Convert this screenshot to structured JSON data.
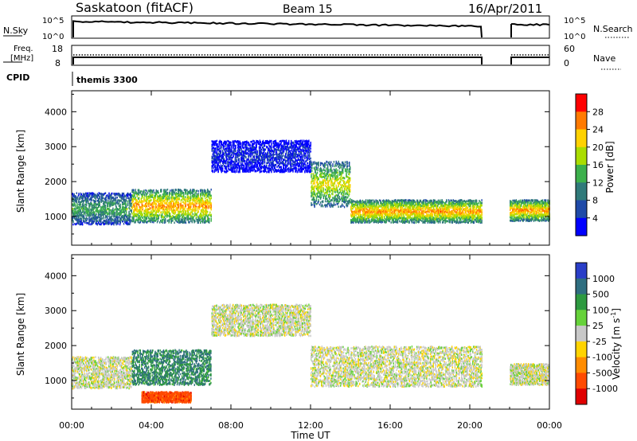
{
  "header": {
    "station": "Saskatoon (fitACF)",
    "beam": "Beam 15",
    "date": "16/Apr/2011"
  },
  "top_panels": {
    "nsky_label": "N.Sky",
    "nsky_ticks": [
      "10^5",
      "10^0"
    ],
    "nsearch_label": "N.Search",
    "nsearch_ticks": [
      "10^5",
      "10^0"
    ],
    "freq_label": "Freq.",
    "freq_unit": "[MHz]",
    "freq_ticks": [
      "18",
      "8"
    ],
    "nave_label": "Nave",
    "nave_ticks": [
      "60",
      "0"
    ],
    "cpid_label": "CPID",
    "cpid_value": "themis 3300"
  },
  "axes": {
    "ylabel": "Slant Range [km]",
    "xlabel": "Time UT",
    "yticks": [
      "4000",
      "3000",
      "2000",
      "1000"
    ],
    "xticks": [
      "00:00",
      "04:00",
      "08:00",
      "12:00",
      "16:00",
      "20:00",
      "00:00"
    ]
  },
  "colorbars": {
    "power": {
      "label": "Power [dB]",
      "ticks": [
        "28",
        "24",
        "20",
        "16",
        "12",
        "8",
        "4"
      ],
      "colors": [
        "#ff0000",
        "#ff7a00",
        "#ffd200",
        "#aadd00",
        "#3cb04c",
        "#307a7a",
        "#1f4aa8",
        "#0000ff"
      ]
    },
    "velocity": {
      "label": "Velocity [m s",
      "label_sup": "-1",
      "label_end": "]",
      "ticks": [
        "1000",
        "500",
        "100",
        "25",
        "-25",
        "-100",
        "-500",
        "-1000"
      ],
      "colors": [
        "#2a3ec8",
        "#2f6e80",
        "#2e9a40",
        "#66d23a",
        "#c8c8c8",
        "#ffd400",
        "#ff8c00",
        "#ff4a00",
        "#e00000"
      ]
    }
  },
  "chart_data": [
    {
      "type": "heatmap",
      "title": "Power",
      "xlabel": "Time UT",
      "ylabel": "Slant Range [km]",
      "xlim": [
        "00:00",
        "24:00"
      ],
      "ylim": [
        180,
        4600
      ],
      "zlabel": "Power [dB]",
      "zlim": [
        0,
        32
      ],
      "scatter_bands": [
        {
          "t_start": 0.0,
          "t_end": 3.0,
          "range_low": 800,
          "range_high": 1700,
          "power": 14
        },
        {
          "t_start": 3.0,
          "t_end": 7.0,
          "range_low": 850,
          "range_high": 1800,
          "power": 24
        },
        {
          "t_start": 7.0,
          "t_end": 12.0,
          "range_low": 2300,
          "range_high": 3200,
          "power": 6
        },
        {
          "t_start": 12.0,
          "t_end": 14.0,
          "range_low": 1300,
          "range_high": 2600,
          "power": 20
        },
        {
          "t_start": 14.0,
          "t_end": 20.6,
          "range_low": 850,
          "range_high": 1500,
          "power": 24
        },
        {
          "t_start": 22.0,
          "t_end": 24.0,
          "range_low": 900,
          "range_high": 1500,
          "power": 24
        }
      ]
    },
    {
      "type": "heatmap",
      "title": "Velocity",
      "xlabel": "Time UT",
      "ylabel": "Slant Range [km]",
      "xlim": [
        "00:00",
        "24:00"
      ],
      "ylim": [
        180,
        4600
      ],
      "zlabel": "Velocity [m s-1]",
      "zlim": [
        -1000,
        1000
      ],
      "scatter_bands": [
        {
          "t_start": 0.0,
          "t_end": 3.0,
          "range_low": 800,
          "range_high": 1700,
          "velocity": 0
        },
        {
          "t_start": 3.0,
          "t_end": 7.0,
          "range_low": 900,
          "range_high": 1900,
          "velocity": 300
        },
        {
          "t_start": 3.5,
          "t_end": 6.0,
          "range_low": 400,
          "range_high": 700,
          "velocity": -500
        },
        {
          "t_start": 7.0,
          "t_end": 12.0,
          "range_low": 2300,
          "range_high": 3200,
          "velocity": 0
        },
        {
          "t_start": 12.0,
          "t_end": 20.6,
          "range_low": 850,
          "range_high": 2000,
          "velocity": 0
        },
        {
          "t_start": 22.0,
          "t_end": 24.0,
          "range_low": 900,
          "range_high": 1500,
          "velocity": 0
        }
      ]
    }
  ]
}
